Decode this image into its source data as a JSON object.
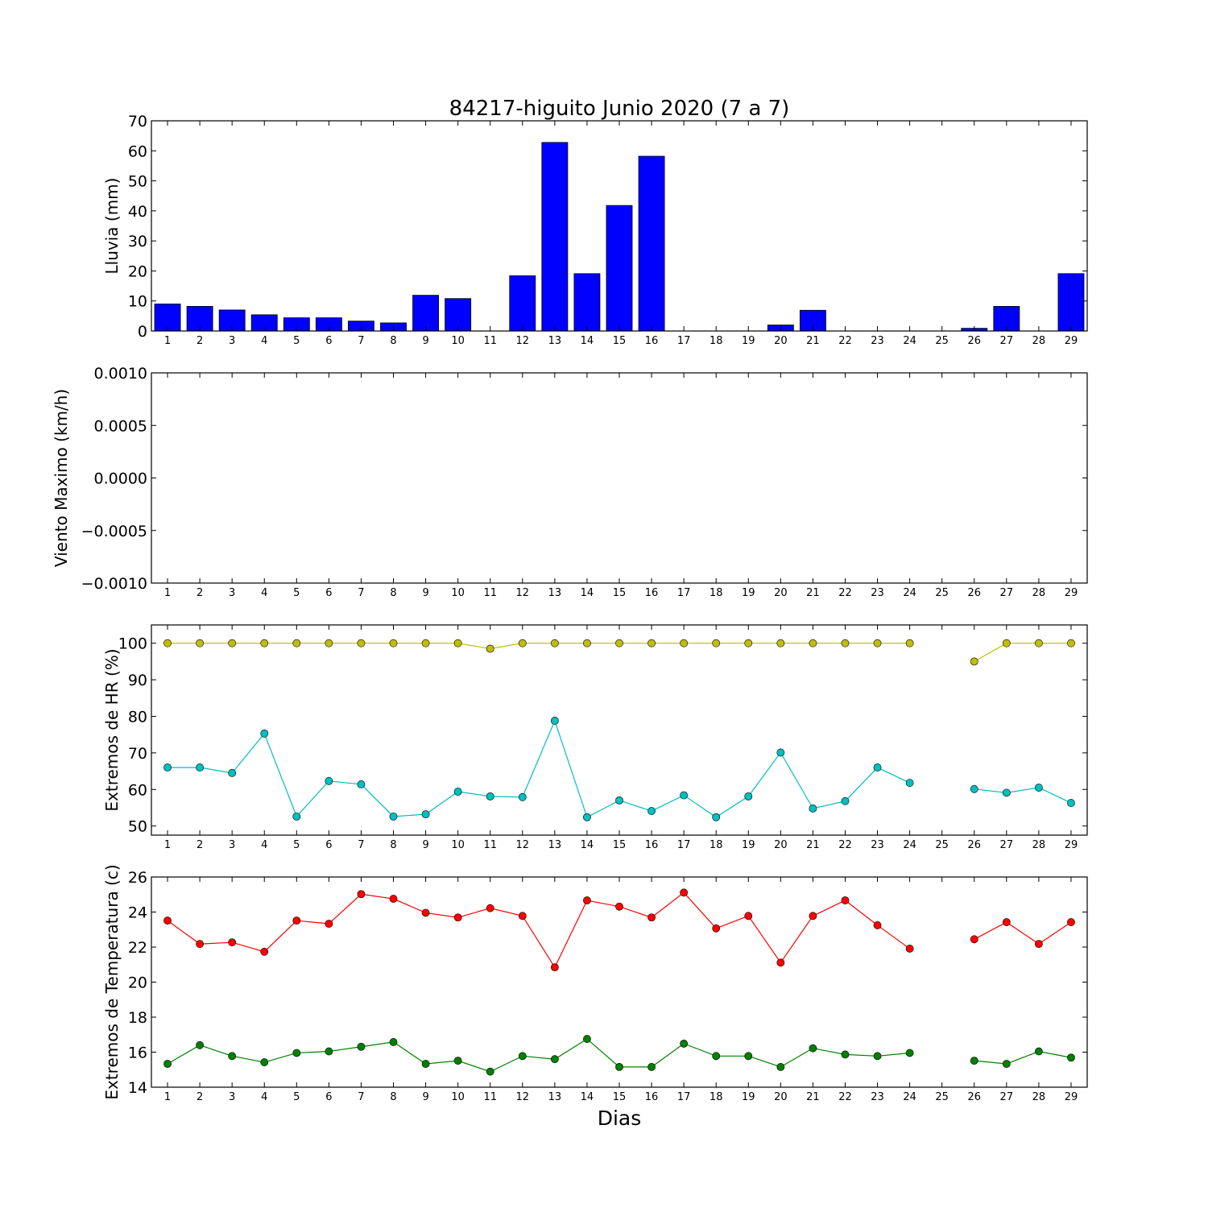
{
  "title": "84217-higuito Junio 2020  (7 a 7)",
  "xlabel": "Dias",
  "chart_data": [
    {
      "type": "bar",
      "ylabel": "Lluvia (mm)",
      "ylim": [
        0,
        70
      ],
      "yticks": [
        "0",
        "10",
        "20",
        "30",
        "40",
        "50",
        "60",
        "70"
      ],
      "x": [
        1,
        2,
        3,
        4,
        5,
        6,
        7,
        8,
        9,
        10,
        11,
        12,
        13,
        14,
        15,
        16,
        17,
        18,
        19,
        20,
        21,
        22,
        23,
        24,
        25,
        26,
        27,
        28,
        29
      ],
      "series": [
        {
          "color": "#0000ff",
          "values": [
            9.0,
            8.2,
            7.0,
            5.4,
            4.4,
            4.4,
            3.3,
            2.7,
            11.9,
            10.8,
            0,
            18.4,
            62.8,
            19.1,
            41.8,
            58.2,
            0,
            0,
            0,
            2.0,
            6.9,
            0,
            0,
            0,
            0,
            0.9,
            8.2,
            0,
            19.1
          ]
        }
      ]
    },
    {
      "type": "line",
      "ylabel": "Viento Maximo (km/h)",
      "ylim": [
        -0.001,
        0.001
      ],
      "yticks": [
        "−0.0010",
        "−0.0005",
        "0.0000",
        "0.0005",
        "0.0010"
      ],
      "x": [
        1,
        2,
        3,
        4,
        5,
        6,
        7,
        8,
        9,
        10,
        11,
        12,
        13,
        14,
        15,
        16,
        17,
        18,
        19,
        20,
        21,
        22,
        23,
        24,
        25,
        26,
        27,
        28,
        29
      ],
      "series": []
    },
    {
      "type": "line",
      "ylabel": "Extremos de HR (%)",
      "ylim": [
        47.5,
        105
      ],
      "yticks": [
        "50",
        "60",
        "70",
        "80",
        "90",
        "100"
      ],
      "x": [
        1,
        2,
        3,
        4,
        5,
        6,
        7,
        8,
        9,
        10,
        11,
        12,
        13,
        14,
        15,
        16,
        17,
        18,
        19,
        20,
        21,
        22,
        23,
        24,
        25,
        26,
        27,
        28,
        29
      ],
      "series": [
        {
          "color": "#bfbf00",
          "values": [
            100,
            100,
            100,
            100,
            100,
            100,
            100,
            100,
            100,
            100,
            98.5,
            100,
            100,
            100,
            100,
            100,
            100,
            100,
            100,
            100,
            100,
            100,
            100,
            100,
            null,
            95,
            100,
            100,
            100
          ]
        },
        {
          "color": "#00bfbf",
          "values": [
            66,
            66,
            64.5,
            75.3,
            52.6,
            62.3,
            61.4,
            52.6,
            53.2,
            59.4,
            58.1,
            57.9,
            78.8,
            52.4,
            57,
            54.1,
            58.4,
            52.4,
            58.1,
            70.1,
            54.8,
            56.8,
            66,
            61.8,
            null,
            60.1,
            59.1,
            60.5,
            56.3
          ]
        }
      ]
    },
    {
      "type": "line",
      "ylabel": "Extremos de Temperatura (c)",
      "ylim": [
        14,
        27.5
      ],
      "yticks": [
        "14",
        "16",
        "18",
        "20",
        "22",
        "24",
        "26"
      ],
      "x": [
        1,
        2,
        3,
        4,
        5,
        6,
        7,
        8,
        9,
        10,
        11,
        12,
        13,
        14,
        15,
        16,
        17,
        18,
        19,
        20,
        21,
        22,
        23,
        24,
        25,
        26,
        27,
        28,
        29
      ],
      "series": [
        {
          "color": "#ff0000",
          "values": [
            24.7,
            23.2,
            23.3,
            22.7,
            24.7,
            24.5,
            26.4,
            26.1,
            25.2,
            24.9,
            25.5,
            25,
            21.7,
            26,
            25.6,
            24.9,
            26.5,
            24.2,
            25,
            22,
            25,
            26,
            24.4,
            22.9,
            null,
            23.5,
            24.6,
            23.2,
            24.6
          ]
        },
        {
          "color": "#008000",
          "values": [
            15.5,
            16.7,
            16,
            15.6,
            16.2,
            16.3,
            16.6,
            16.9,
            15.5,
            15.7,
            15,
            16,
            15.8,
            17.1,
            15.3,
            15.3,
            16.8,
            16,
            16,
            15.3,
            16.5,
            16.1,
            16,
            16.2,
            null,
            15.7,
            15.5,
            16.3,
            15.9
          ]
        }
      ]
    }
  ]
}
